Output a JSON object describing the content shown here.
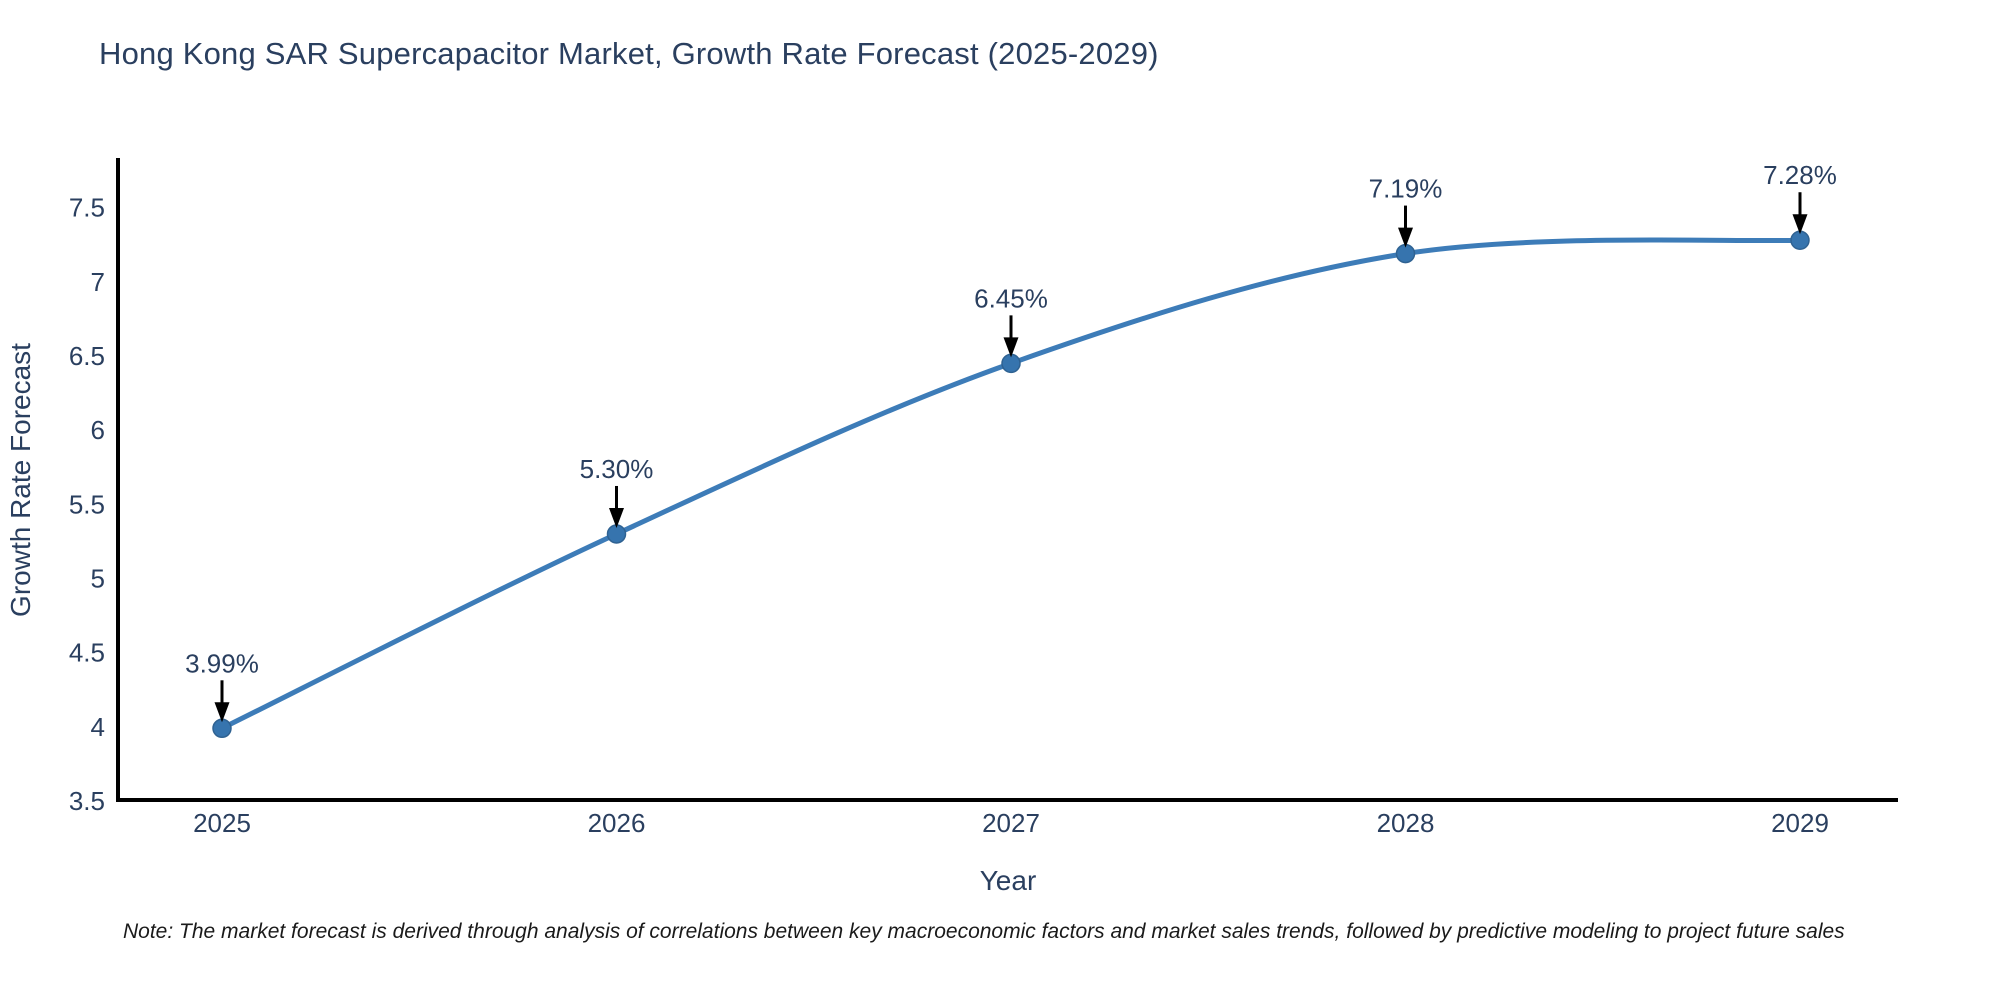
{
  "title": "Hong Kong SAR Supercapacitor Market, Growth Rate Forecast (2025-2029)",
  "footnote": "Note: The market forecast is derived through analysis of correlations between key macroeconomic factors and market sales trends, followed by predictive modeling to project future sales",
  "chart_data": {
    "type": "line",
    "line_shape": "spline",
    "x": [
      2025,
      2026,
      2027,
      2028,
      2029
    ],
    "values": [
      3.99,
      5.3,
      6.45,
      7.19,
      7.28
    ],
    "point_labels": [
      "3.99%",
      "5.30%",
      "6.45%",
      "7.19%",
      "7.28%"
    ],
    "xtick_labels": [
      "2025",
      "2026",
      "2027",
      "2028",
      "2029"
    ],
    "yticks": [
      3.5,
      4,
      4.5,
      5,
      5.5,
      6,
      6.5,
      7,
      7.5
    ],
    "ytick_labels": [
      "3.5",
      "4",
      "4.5",
      "5",
      "5.5",
      "6",
      "6.5",
      "7",
      "7.5"
    ],
    "ylim": [
      3.5,
      7.5
    ],
    "title": "Hong Kong SAR Supercapacitor Market, Growth Rate Forecast (2025-2029)",
    "xlabel": "Year",
    "ylabel": "Growth Rate Forecast",
    "grid": false,
    "legend": false,
    "annotations_have_arrows": true,
    "colors": {
      "line": "#3d7cb8",
      "marker_fill": "#3674ae",
      "marker_stroke": "#2f6292",
      "axis": "#000000",
      "tick_text": "#2a3f5f",
      "annotation_text": "#2a3f5f",
      "arrow": "#000000",
      "title_text": "#2a3f5f"
    }
  }
}
